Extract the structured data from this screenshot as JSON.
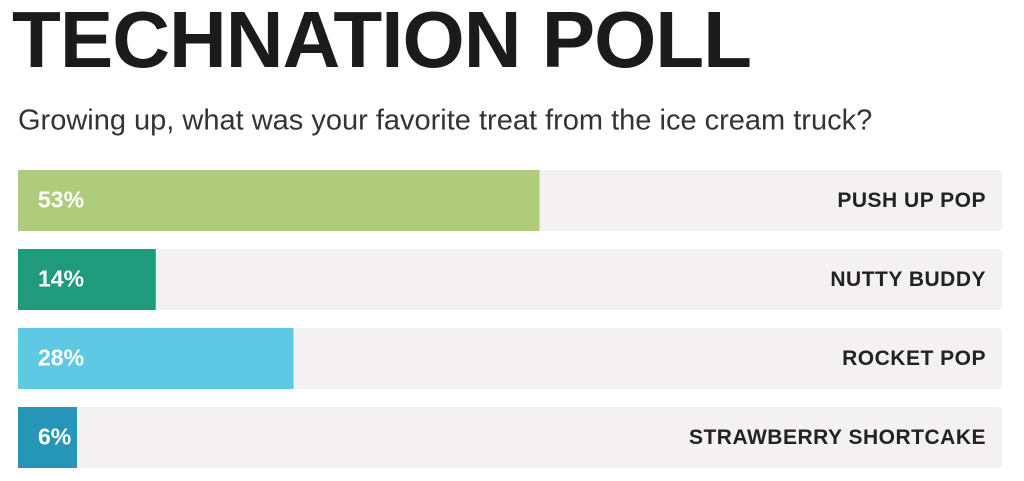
{
  "chart_data": {
    "type": "bar",
    "title": "TECHNATION POLL",
    "subtitle": "Growing up, what was your favorite treat from the ice cream truck?",
    "categories": [
      "PUSH UP POP",
      "NUTTY BUDDY",
      "ROCKET POP",
      "STRAWBERRY SHORTCAKE"
    ],
    "values": [
      53,
      14,
      28,
      6
    ],
    "value_labels": [
      "53%",
      "14%",
      "28%",
      "6%"
    ],
    "colors": [
      "#afcc7a",
      "#1f9a7a",
      "#5fc8e3",
      "#2596b8"
    ],
    "xlim": [
      0,
      100
    ]
  }
}
